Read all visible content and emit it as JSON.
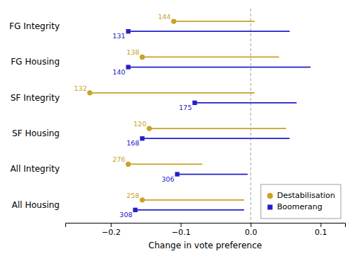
{
  "chart_data": {
    "type": "dot",
    "orientation": "horizontal",
    "xlabel": "Change in vote preference",
    "categories": [
      "FG Integrity",
      "FG Housing",
      "SF Integrity",
      "SF Housing",
      "All Integrity",
      "All Housing"
    ],
    "series": [
      {
        "name": "Destabilisation",
        "color": "#C9A227",
        "marker": "circle",
        "values": [
          -0.11,
          -0.155,
          -0.23,
          -0.145,
          -0.175,
          -0.155
        ],
        "ci_high": [
          0.005,
          0.04,
          0.005,
          0.05,
          -0.07,
          -0.01
        ],
        "n": [
          144,
          138,
          132,
          120,
          276,
          258
        ]
      },
      {
        "name": "Boomerang",
        "color": "#2020CC",
        "marker": "square",
        "values": [
          -0.175,
          -0.175,
          -0.08,
          -0.155,
          -0.105,
          -0.165
        ],
        "ci_high": [
          0.055,
          0.085,
          0.065,
          0.055,
          -0.005,
          -0.01
        ],
        "n": [
          131,
          140,
          175,
          168,
          306,
          308
        ]
      }
    ],
    "vline_x": 0.0,
    "xlim": [
      -0.265,
      0.135
    ],
    "xticks": [
      {
        "value": -0.2,
        "label": "−0.2"
      },
      {
        "value": -0.1,
        "label": "−0.1"
      },
      {
        "value": 0.0,
        "label": "0.0"
      },
      0.1
    ],
    "grid": false,
    "legend": "lower right"
  }
}
